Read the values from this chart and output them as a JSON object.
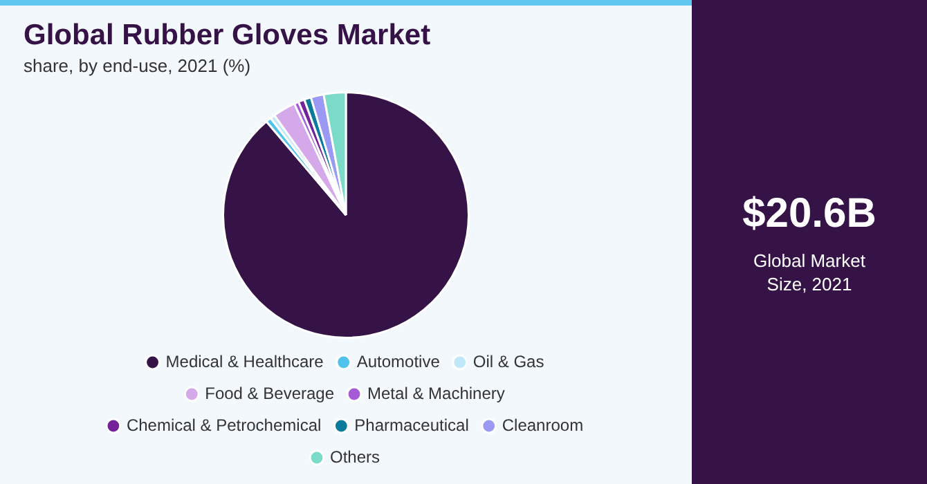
{
  "chart_data": {
    "type": "pie",
    "title": "Global Rubber Gloves Market",
    "subtitle": "share, by end-use, 2021 (%)",
    "categories": [
      "Medical & Healthcare",
      "Automotive",
      "Oil & Gas",
      "Food & Beverage",
      "Metal & Machinery",
      "Chemical & Petrochemical",
      "Pharmaceutical",
      "Cleanroom",
      "Others"
    ],
    "values": [
      88.8,
      0.7,
      0.6,
      3.0,
      0.6,
      0.8,
      0.9,
      1.7,
      2.9
    ],
    "colors": [
      "#361347",
      "#4fc3ec",
      "#bfe8f8",
      "#d5a8ea",
      "#a55ad6",
      "#73229a",
      "#0b7a9a",
      "#9a9af5",
      "#7adcc8"
    ],
    "legend": "bottom",
    "annotations": [
      "$20.6B",
      "Global Market Size, 2021"
    ]
  }
}
